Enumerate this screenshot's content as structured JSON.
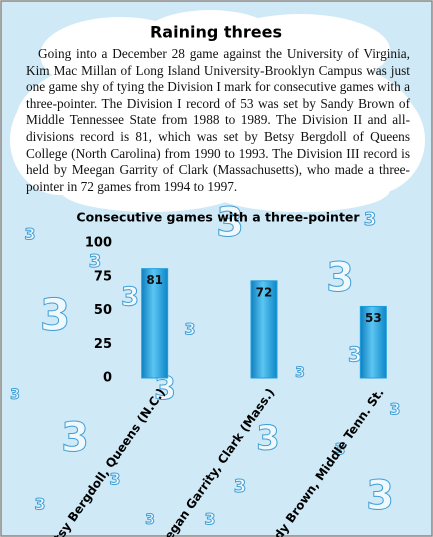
{
  "chart_data": {
    "type": "bar",
    "title": "Raining threes",
    "text": "Going into a December 28 game against the University of Virginia, Kim Mac Millan of Long Island University-Brooklyn Campus was just one game shy of tying the Division I mark for consecutive games with a three-pointer. The Division I record of 53 was set by Sandy Brown of Middle Tennessee State from 1988 to 1989. The Division II and all-divisions record is 81, which was set by Betsy Bergdoll of Queens College (North Carolina) from 1990 to 1993. The Division III record is held by Meegan Garrity of Clark (Massachusetts), who made a three-pointer in 72 games from 1994 to 1997.",
    "subtitle": "Consecutive games with a three-pointer",
    "decoration": "3",
    "categories": [
      "Betsy Bergdoll, Queens (N.C.)",
      "Meegan Garrity, Clark (Mass.)",
      "Sandy Brown, Middle Tenn. St."
    ],
    "values": [
      81,
      72,
      53
    ],
    "color": "#1e9fdc",
    "ylim": [
      0,
      100
    ],
    "yticks": [
      0,
      25,
      50,
      75,
      100
    ],
    "grid": false
  }
}
